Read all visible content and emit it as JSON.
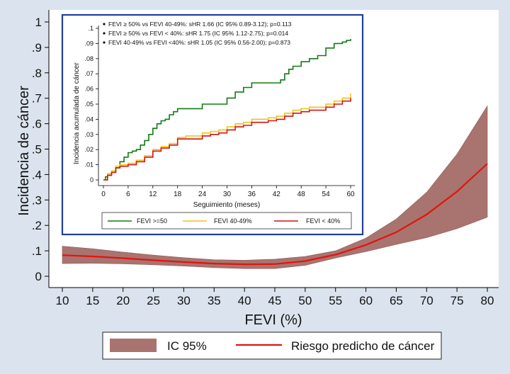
{
  "colors": {
    "page_background": "#dbe4ee",
    "plot_background": "#ffffff",
    "ci_band": "#a9746f",
    "risk_line": "#e5120f",
    "inset_border": "#1f3f9a",
    "fevi_ge50": "#137a15",
    "fevi_40_49": "#f0c419",
    "fevi_lt40": "#d31412"
  },
  "chart_data": [
    {
      "type": "area",
      "title": "",
      "xlabel": "FEVI (%)",
      "ylabel": "Incidencia de cáncer",
      "xlim": [
        10,
        80
      ],
      "ylim": [
        0,
        1
      ],
      "xticks": [
        "10",
        "15",
        "20",
        "25",
        "30",
        "35",
        "40",
        "45",
        "50",
        "55",
        "60",
        "65",
        "70",
        "75",
        "80"
      ],
      "yticks": [
        "0",
        ".1",
        ".2",
        ".3",
        ".4",
        ".5",
        ".6",
        ".7",
        ".8",
        ".9",
        "1"
      ],
      "grid": false,
      "legend_position": "bottom",
      "x": [
        10,
        15,
        20,
        25,
        30,
        35,
        40,
        45,
        50,
        55,
        60,
        65,
        70,
        75,
        80
      ],
      "series": [
        {
          "name": "Riesgo predicho de cáncer",
          "kind": "line",
          "values": [
            0.083,
            0.078,
            0.071,
            0.063,
            0.056,
            0.05,
            0.047,
            0.048,
            0.06,
            0.085,
            0.123,
            0.173,
            0.243,
            0.333,
            0.443
          ]
        },
        {
          "name": "IC 95%",
          "kind": "band",
          "lower": [
            0.05,
            0.051,
            0.049,
            0.045,
            0.04,
            0.034,
            0.03,
            0.03,
            0.043,
            0.072,
            0.097,
            0.125,
            0.152,
            0.187,
            0.232
          ],
          "upper": [
            0.118,
            0.108,
            0.095,
            0.083,
            0.073,
            0.065,
            0.063,
            0.067,
            0.078,
            0.1,
            0.15,
            0.225,
            0.33,
            0.48,
            0.67
          ]
        }
      ]
    },
    {
      "type": "line",
      "title": "",
      "xlabel": "Seguimiento (meses)",
      "ylabel": "Incidencia acumulada de cáncer",
      "xlim": [
        0,
        60
      ],
      "ylim": [
        0,
        0.1
      ],
      "xticks": [
        "0",
        "6",
        "12",
        "18",
        "24",
        "30",
        "36",
        "42",
        "48",
        "54",
        "60"
      ],
      "yticks": [
        "0",
        ".01",
        ".02",
        ".03",
        ".04",
        ".05",
        ".06",
        ".07",
        ".08",
        ".09",
        ".1"
      ],
      "grid": false,
      "legend_position": "bottom",
      "annotations": [
        "FEVI ≥ 50% vs FEVI 40-49%: sHR 1.66 (IC 95% 0.89-3.12); p=0.113",
        "FEVI ≥ 50% vs FEVI < 40%: sHR 1.75 (IC 95% 1.12-2.75); p=0.014",
        "FEVI 40-49% vs FEVI <40%: sHR 1.05 (IC 95% 0.56-2.00); p=0.873"
      ],
      "series": [
        {
          "name": "FEVI >=50",
          "x": [
            0,
            0.5,
            1,
            2,
            3,
            4,
            5,
            6,
            7,
            8,
            9,
            10,
            11,
            12,
            13,
            14,
            15,
            16,
            17,
            18,
            20,
            22,
            24,
            26,
            28,
            30,
            32,
            34,
            36,
            38,
            40,
            42,
            43,
            44,
            45,
            46,
            47,
            48,
            50,
            52,
            54,
            56,
            58,
            59,
            60
          ],
          "values": [
            0,
            0.002,
            0.004,
            0.005,
            0.008,
            0.012,
            0.015,
            0.018,
            0.019,
            0.02,
            0.023,
            0.026,
            0.03,
            0.034,
            0.037,
            0.039,
            0.04,
            0.043,
            0.045,
            0.047,
            0.047,
            0.047,
            0.05,
            0.05,
            0.05,
            0.054,
            0.058,
            0.061,
            0.064,
            0.064,
            0.064,
            0.064,
            0.066,
            0.07,
            0.073,
            0.075,
            0.075,
            0.078,
            0.08,
            0.082,
            0.087,
            0.09,
            0.091,
            0.092,
            0.093
          ]
        },
        {
          "name": "FEVI 40-49%",
          "x": [
            0,
            1,
            2,
            3,
            4,
            6,
            8,
            10,
            12,
            14,
            16,
            18,
            20,
            22,
            24,
            26,
            28,
            30,
            32,
            34,
            36,
            38,
            40,
            42,
            44,
            46,
            48,
            50,
            52,
            54,
            56,
            58,
            60
          ],
          "values": [
            0,
            0.004,
            0.006,
            0.009,
            0.01,
            0.011,
            0.013,
            0.016,
            0.02,
            0.022,
            0.024,
            0.028,
            0.029,
            0.029,
            0.031,
            0.032,
            0.033,
            0.035,
            0.037,
            0.038,
            0.04,
            0.04,
            0.041,
            0.042,
            0.044,
            0.046,
            0.047,
            0.048,
            0.048,
            0.05,
            0.052,
            0.054,
            0.057
          ]
        },
        {
          "name": "FEVI < 40%",
          "x": [
            0,
            1,
            2,
            3,
            4,
            6,
            8,
            10,
            12,
            14,
            16,
            18,
            20,
            22,
            24,
            26,
            28,
            30,
            32,
            34,
            36,
            38,
            40,
            42,
            44,
            46,
            48,
            50,
            52,
            54,
            56,
            58,
            60
          ],
          "values": [
            0,
            0.003,
            0.005,
            0.008,
            0.009,
            0.01,
            0.012,
            0.015,
            0.019,
            0.021,
            0.023,
            0.027,
            0.027,
            0.027,
            0.029,
            0.03,
            0.031,
            0.033,
            0.035,
            0.036,
            0.038,
            0.038,
            0.039,
            0.04,
            0.042,
            0.044,
            0.045,
            0.046,
            0.046,
            0.048,
            0.05,
            0.052,
            0.054
          ]
        }
      ]
    }
  ]
}
